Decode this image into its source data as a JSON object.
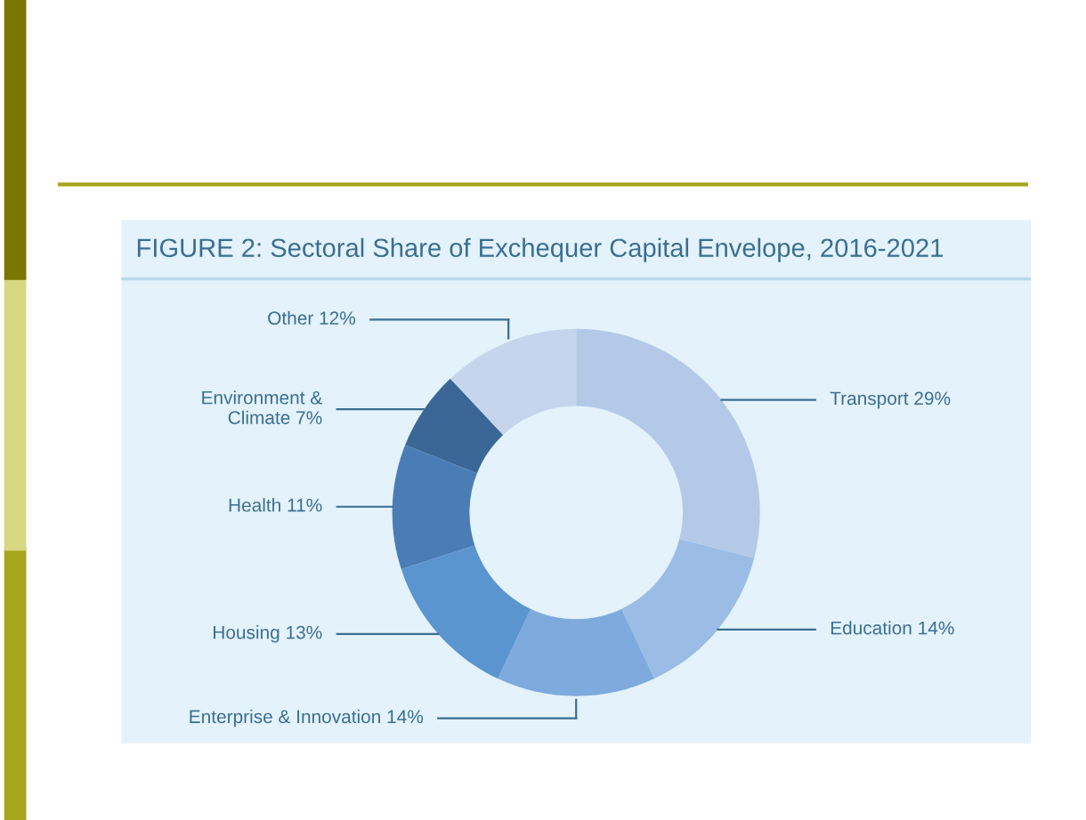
{
  "chart_data": {
    "type": "donut",
    "title": "FIGURE 2: Sectoral Share of Exchequer Capital Envelope, 2016-2021",
    "categories": [
      "Transport",
      "Education",
      "Enterprise & Innovation",
      "Housing",
      "Health",
      "Environment &\nClimate",
      "Other"
    ],
    "values": [
      29,
      14,
      14,
      13,
      11,
      7,
      12
    ],
    "value_labels": [
      "29%",
      "14%",
      "14%",
      "13%",
      "11%",
      "7%",
      "12%"
    ],
    "colors": [
      "#b3c9e7",
      "#9bbce5",
      "#7eaadd",
      "#5a95d0",
      "#4a7db6",
      "#3a6796",
      "#c6d5ec"
    ]
  }
}
